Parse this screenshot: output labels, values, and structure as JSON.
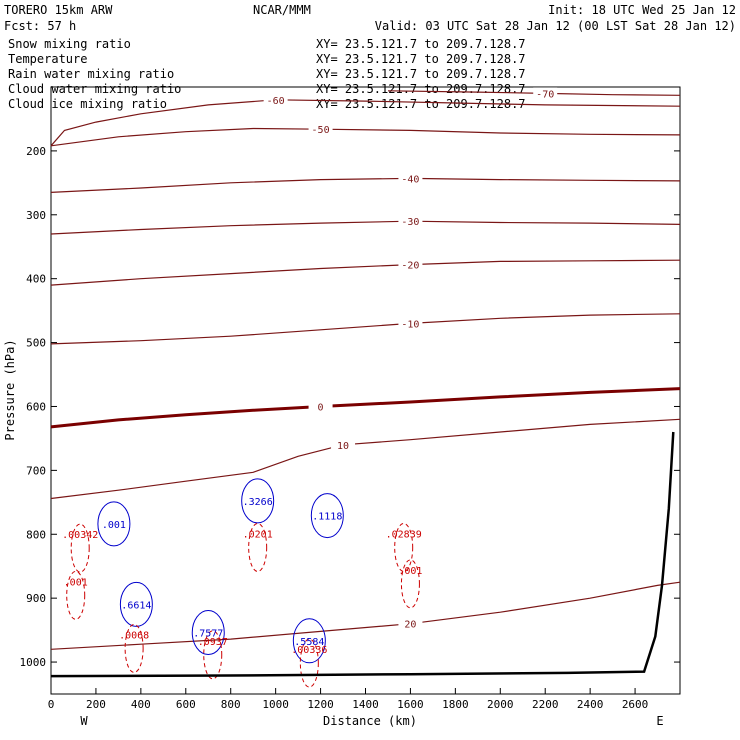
{
  "header": {
    "model": "TORERO  15km ARW",
    "org": "NCAR/MMM",
    "init": "Init: 18 UTC Wed 25 Jan 12",
    "fcst": "Fcst:   57 h",
    "valid": "Valid: 03 UTC Sat 28 Jan 12 (00 LST Sat 28 Jan 12)"
  },
  "legend": [
    {
      "label": "Snow mixing ratio",
      "color": "#000000",
      "xy": "XY=  23.5.121.7 to 209.7.128.7"
    },
    {
      "label": "Temperature",
      "color": "#cc0000",
      "xy": "XY=  23.5.121.7 to 209.7.128.7"
    },
    {
      "label": "Rain water mixing ratio",
      "color": "#cc0000",
      "xy": "XY=  23.5.121.7 to 209.7.128.7"
    },
    {
      "label": "Cloud water mixing ratio",
      "color": "#0000cc",
      "xy": "XY=  23.5.121.7 to 209.7.128.7"
    },
    {
      "label": "Cloud ice mixing ratio",
      "color": "#000000",
      "xy": "XY=  23.5.121.7 to 209.7.128.7"
    }
  ],
  "chart_data": {
    "type": "cross-section contour",
    "xlabel": "Distance (km)",
    "ylabel": "Pressure (hPa)",
    "xlim": [
      0,
      2800
    ],
    "ylim": [
      1050,
      100
    ],
    "x_ticks": [
      0,
      200,
      400,
      600,
      800,
      1000,
      1200,
      1400,
      1600,
      1800,
      2000,
      2200,
      2400,
      2600
    ],
    "y_ticks": [
      200,
      300,
      400,
      500,
      600,
      700,
      800,
      900,
      1000
    ],
    "endpoints": {
      "left": "W",
      "right": "E"
    },
    "colors": {
      "temperature": "#7a1616",
      "zero_isotherm": "#7a0000",
      "terrain": "#000000",
      "cloud_water": "#0000cc",
      "rain": "#cc0000"
    },
    "temperature_contours": [
      {
        "label": "-70",
        "points": [
          [
            1500,
            106
          ],
          [
            1900,
            108
          ],
          [
            2200,
            110
          ],
          [
            2500,
            112
          ],
          [
            2800,
            113
          ]
        ]
      },
      {
        "label": "-60",
        "points": [
          [
            0,
            192
          ],
          [
            60,
            168
          ],
          [
            200,
            155
          ],
          [
            400,
            142
          ],
          [
            700,
            128
          ],
          [
            1000,
            120
          ],
          [
            1400,
            122
          ],
          [
            1800,
            125
          ],
          [
            2200,
            128
          ],
          [
            2800,
            130
          ]
        ]
      },
      {
        "label": "-50",
        "points": [
          [
            0,
            192
          ],
          [
            300,
            178
          ],
          [
            600,
            170
          ],
          [
            900,
            165
          ],
          [
            1200,
            166
          ],
          [
            1600,
            168
          ],
          [
            2000,
            172
          ],
          [
            2400,
            174
          ],
          [
            2800,
            175
          ]
        ]
      },
      {
        "label": "-40",
        "points": [
          [
            0,
            265
          ],
          [
            400,
            258
          ],
          [
            800,
            250
          ],
          [
            1200,
            245
          ],
          [
            1600,
            243
          ],
          [
            2000,
            245
          ],
          [
            2400,
            246
          ],
          [
            2800,
            247
          ]
        ]
      },
      {
        "label": "-30",
        "points": [
          [
            0,
            330
          ],
          [
            400,
            323
          ],
          [
            800,
            317
          ],
          [
            1200,
            313
          ],
          [
            1600,
            310
          ],
          [
            2000,
            312
          ],
          [
            2400,
            313
          ],
          [
            2800,
            315
          ]
        ]
      },
      {
        "label": "-20",
        "points": [
          [
            0,
            410
          ],
          [
            400,
            400
          ],
          [
            800,
            392
          ],
          [
            1200,
            384
          ],
          [
            1600,
            378
          ],
          [
            2000,
            373
          ],
          [
            2400,
            372
          ],
          [
            2800,
            371
          ]
        ]
      },
      {
        "label": "-10",
        "points": [
          [
            0,
            502
          ],
          [
            400,
            497
          ],
          [
            800,
            490
          ],
          [
            1200,
            480
          ],
          [
            1600,
            470
          ],
          [
            2000,
            462
          ],
          [
            2400,
            457
          ],
          [
            2800,
            455
          ]
        ]
      },
      {
        "label": "0",
        "bold": true,
        "points": [
          [
            0,
            632
          ],
          [
            300,
            621
          ],
          [
            600,
            613
          ],
          [
            900,
            606
          ],
          [
            1200,
            600
          ],
          [
            1600,
            593
          ],
          [
            2000,
            585
          ],
          [
            2400,
            578
          ],
          [
            2800,
            572
          ]
        ]
      },
      {
        "label": "10",
        "points": [
          [
            0,
            744
          ],
          [
            300,
            731
          ],
          [
            600,
            717
          ],
          [
            900,
            703
          ],
          [
            1100,
            678
          ],
          [
            1300,
            660
          ],
          [
            1600,
            652
          ],
          [
            2000,
            640
          ],
          [
            2400,
            628
          ],
          [
            2800,
            620
          ]
        ]
      },
      {
        "label": "20",
        "points": [
          [
            0,
            980
          ],
          [
            400,
            972
          ],
          [
            800,
            964
          ],
          [
            1200,
            952
          ],
          [
            1600,
            940
          ],
          [
            2000,
            922
          ],
          [
            2400,
            900
          ],
          [
            2700,
            880
          ],
          [
            2800,
            875
          ]
        ]
      }
    ],
    "terrain": [
      [
        0,
        1022
      ],
      [
        800,
        1021
      ],
      [
        1600,
        1019
      ],
      [
        2300,
        1017
      ],
      [
        2640,
        1015
      ],
      [
        2690,
        960
      ],
      [
        2720,
        880
      ],
      [
        2750,
        760
      ],
      [
        2770,
        640
      ]
    ],
    "labeled_maxima": [
      {
        "kind": "rain",
        "value": ".00342",
        "x": 130,
        "p": 806
      },
      {
        "kind": "rain",
        "value": ".001",
        "x": 110,
        "p": 880
      },
      {
        "kind": "cloud",
        "value": ".001",
        "x": 280,
        "p": 790
      },
      {
        "kind": "cloud",
        "value": ".3266",
        "x": 920,
        "p": 754
      },
      {
        "kind": "rain",
        "value": ".0201",
        "x": 920,
        "p": 805
      },
      {
        "kind": "cloud",
        "value": ".1118",
        "x": 1230,
        "p": 777
      },
      {
        "kind": "rain",
        "value": ".02839",
        "x": 1570,
        "p": 805
      },
      {
        "kind": "rain",
        "value": ".001",
        "x": 1600,
        "p": 862
      },
      {
        "kind": "cloud",
        "value": ".6614",
        "x": 380,
        "p": 916
      },
      {
        "kind": "rain",
        "value": ".0068",
        "x": 370,
        "p": 963
      },
      {
        "kind": "cloud",
        "value": ".7577",
        "x": 700,
        "p": 960
      },
      {
        "kind": "rain",
        "value": ".0937",
        "x": 720,
        "p": 973
      },
      {
        "kind": "cloud",
        "value": ".5584",
        "x": 1150,
        "p": 973
      },
      {
        "kind": "rain",
        "value": ".00336",
        "x": 1150,
        "p": 986
      }
    ]
  }
}
